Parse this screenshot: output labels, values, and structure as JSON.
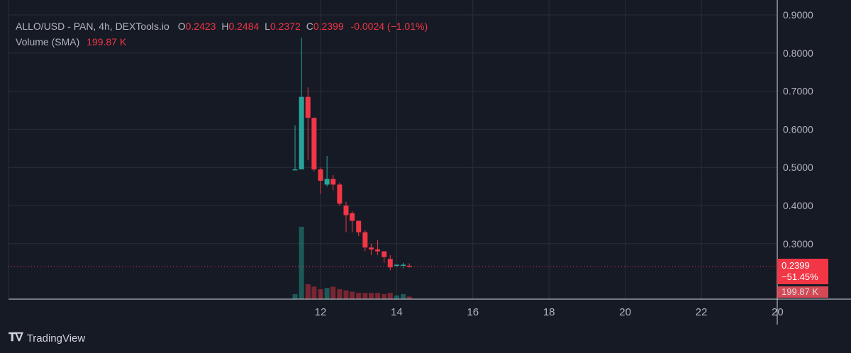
{
  "legend": {
    "symbol": "ALLO/USD - PAN, 4h, DEXTools.io",
    "open_label": "O",
    "open": "0.2423",
    "high_label": "H",
    "high": "0.2484",
    "low_label": "L",
    "low": "0.2372",
    "close_label": "C",
    "close": "0.2399",
    "change": "-0.0024 (−1.01%)",
    "volume_label": "Volume (SMA)",
    "volume": "199.87 K"
  },
  "price_tag": {
    "price": "0.2399",
    "change_pct": "−51.45%"
  },
  "volume_tag": "199.87 K",
  "branding": "TradingView",
  "colors": {
    "up": "#26a69a",
    "down": "#f23645",
    "background": "#161a25",
    "grid": "#2a2e39",
    "axis_text": "#b2b5be"
  },
  "chart_data": {
    "type": "candlestick",
    "title": "ALLO/USD - PAN, 4h, DEXTools.io",
    "x_ticks": [
      "12",
      "14",
      "16",
      "18",
      "20",
      "22",
      "20"
    ],
    "y_ticks": [
      "0.9000",
      "0.8000",
      "0.7000",
      "0.6000",
      "0.5000",
      "0.4000",
      "0.3000"
    ],
    "ylim": [
      0.22,
      0.91
    ],
    "grid": true,
    "last_price": 0.2399,
    "candles": [
      {
        "x": 11.33,
        "o": 0.495,
        "h": 0.61,
        "l": 0.495,
        "c": 0.495,
        "vol": 0.04
      },
      {
        "x": 11.5,
        "o": 0.495,
        "h": 0.84,
        "l": 0.495,
        "c": 0.685,
        "vol": 0.58
      },
      {
        "x": 11.67,
        "o": 0.685,
        "h": 0.71,
        "l": 0.52,
        "c": 0.63,
        "vol": 0.12
      },
      {
        "x": 11.83,
        "o": 0.63,
        "h": 0.63,
        "l": 0.49,
        "c": 0.495,
        "vol": 0.1
      },
      {
        "x": 12.0,
        "o": 0.495,
        "h": 0.5,
        "l": 0.43,
        "c": 0.465,
        "vol": 0.08
      },
      {
        "x": 12.17,
        "o": 0.455,
        "h": 0.53,
        "l": 0.45,
        "c": 0.47,
        "vol": 0.09
      },
      {
        "x": 12.33,
        "o": 0.47,
        "h": 0.48,
        "l": 0.44,
        "c": 0.455,
        "vol": 0.1
      },
      {
        "x": 12.5,
        "o": 0.455,
        "h": 0.46,
        "l": 0.4,
        "c": 0.405,
        "vol": 0.08
      },
      {
        "x": 12.67,
        "o": 0.4,
        "h": 0.41,
        "l": 0.33,
        "c": 0.375,
        "vol": 0.07
      },
      {
        "x": 12.83,
        "o": 0.38,
        "h": 0.385,
        "l": 0.33,
        "c": 0.36,
        "vol": 0.06
      },
      {
        "x": 13.0,
        "o": 0.36,
        "h": 0.36,
        "l": 0.32,
        "c": 0.33,
        "vol": 0.05
      },
      {
        "x": 13.17,
        "o": 0.33,
        "h": 0.335,
        "l": 0.28,
        "c": 0.29,
        "vol": 0.05
      },
      {
        "x": 13.33,
        "o": 0.29,
        "h": 0.3,
        "l": 0.27,
        "c": 0.285,
        "vol": 0.05
      },
      {
        "x": 13.5,
        "o": 0.285,
        "h": 0.31,
        "l": 0.27,
        "c": 0.28,
        "vol": 0.05
      },
      {
        "x": 13.67,
        "o": 0.28,
        "h": 0.28,
        "l": 0.25,
        "c": 0.265,
        "vol": 0.04
      },
      {
        "x": 13.83,
        "o": 0.26,
        "h": 0.27,
        "l": 0.23,
        "c": 0.238,
        "vol": 0.05
      },
      {
        "x": 14.0,
        "o": 0.242,
        "h": 0.245,
        "l": 0.24,
        "c": 0.245,
        "vol": 0.03
      },
      {
        "x": 14.17,
        "o": 0.242,
        "h": 0.25,
        "l": 0.235,
        "c": 0.245,
        "vol": 0.04
      },
      {
        "x": 14.33,
        "o": 0.2423,
        "h": 0.2484,
        "l": 0.2372,
        "c": 0.2399,
        "vol": 0.02
      }
    ]
  }
}
